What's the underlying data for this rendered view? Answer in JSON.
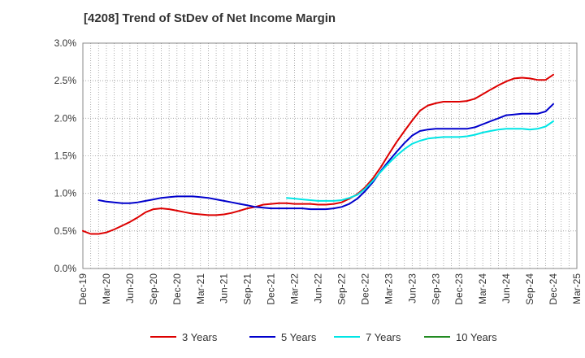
{
  "chart_data": {
    "type": "line",
    "title": "[4208]  Trend of StDev of Net Income Margin",
    "xlabel": "",
    "ylabel": "",
    "categories": [
      "Dec-19",
      "Mar-20",
      "Jun-20",
      "Sep-20",
      "Dec-20",
      "Mar-21",
      "Jun-21",
      "Sep-21",
      "Dec-21",
      "Mar-22",
      "Jun-22",
      "Sep-22",
      "Dec-22",
      "Mar-23",
      "Jun-23",
      "Sep-23",
      "Dec-23",
      "Mar-24",
      "Jun-24",
      "Sep-24",
      "Dec-24",
      "Mar-25"
    ],
    "y_ticks": [
      "0.0%",
      "0.5%",
      "1.0%",
      "1.5%",
      "2.0%",
      "2.5%",
      "3.0%"
    ],
    "ylim": [
      0,
      3.0
    ],
    "grid": true,
    "legend_position": "bottom",
    "series": [
      {
        "name": "3 Years",
        "color": "#dd0000",
        "points": [
          [
            0,
            0.5
          ],
          [
            0.33,
            0.46
          ],
          [
            0.67,
            0.46
          ],
          [
            1,
            0.48
          ],
          [
            1.33,
            0.52
          ],
          [
            1.67,
            0.57
          ],
          [
            2,
            0.62
          ],
          [
            2.33,
            0.68
          ],
          [
            2.67,
            0.75
          ],
          [
            3,
            0.79
          ],
          [
            3.33,
            0.8
          ],
          [
            3.67,
            0.79
          ],
          [
            4,
            0.77
          ],
          [
            4.33,
            0.75
          ],
          [
            4.67,
            0.73
          ],
          [
            5,
            0.72
          ],
          [
            5.33,
            0.71
          ],
          [
            5.67,
            0.71
          ],
          [
            6,
            0.72
          ],
          [
            6.33,
            0.74
          ],
          [
            6.67,
            0.77
          ],
          [
            7,
            0.8
          ],
          [
            7.33,
            0.82
          ],
          [
            7.67,
            0.85
          ],
          [
            8,
            0.86
          ],
          [
            8.33,
            0.87
          ],
          [
            8.67,
            0.87
          ],
          [
            9,
            0.86
          ],
          [
            9.33,
            0.86
          ],
          [
            9.67,
            0.86
          ],
          [
            10,
            0.85
          ],
          [
            10.33,
            0.85
          ],
          [
            10.67,
            0.86
          ],
          [
            11,
            0.88
          ],
          [
            11.33,
            0.93
          ],
          [
            11.67,
            0.99
          ],
          [
            12,
            1.08
          ],
          [
            12.33,
            1.2
          ],
          [
            12.67,
            1.35
          ],
          [
            13,
            1.52
          ],
          [
            13.33,
            1.68
          ],
          [
            13.67,
            1.83
          ],
          [
            14,
            1.97
          ],
          [
            14.33,
            2.1
          ],
          [
            14.67,
            2.17
          ],
          [
            15,
            2.2
          ],
          [
            15.33,
            2.22
          ],
          [
            15.67,
            2.22
          ],
          [
            16,
            2.22
          ],
          [
            16.33,
            2.23
          ],
          [
            16.67,
            2.26
          ],
          [
            17,
            2.32
          ],
          [
            17.33,
            2.38
          ],
          [
            17.67,
            2.44
          ],
          [
            18,
            2.49
          ],
          [
            18.33,
            2.53
          ],
          [
            18.67,
            2.54
          ],
          [
            19,
            2.53
          ],
          [
            19.33,
            2.51
          ],
          [
            19.67,
            2.51
          ],
          [
            20,
            2.58
          ]
        ]
      },
      {
        "name": "5 Years",
        "color": "#0000cc",
        "points": [
          [
            0.67,
            0.91
          ],
          [
            1,
            0.89
          ],
          [
            1.33,
            0.88
          ],
          [
            1.67,
            0.87
          ],
          [
            2,
            0.87
          ],
          [
            2.33,
            0.88
          ],
          [
            2.67,
            0.9
          ],
          [
            3,
            0.92
          ],
          [
            3.33,
            0.94
          ],
          [
            3.67,
            0.95
          ],
          [
            4,
            0.96
          ],
          [
            4.33,
            0.96
          ],
          [
            4.67,
            0.96
          ],
          [
            5,
            0.95
          ],
          [
            5.33,
            0.94
          ],
          [
            5.67,
            0.92
          ],
          [
            6,
            0.9
          ],
          [
            6.33,
            0.88
          ],
          [
            6.67,
            0.86
          ],
          [
            7,
            0.84
          ],
          [
            7.33,
            0.82
          ],
          [
            7.67,
            0.81
          ],
          [
            8,
            0.8
          ],
          [
            8.33,
            0.8
          ],
          [
            8.67,
            0.8
          ],
          [
            9,
            0.8
          ],
          [
            9.33,
            0.8
          ],
          [
            9.67,
            0.79
          ],
          [
            10,
            0.79
          ],
          [
            10.33,
            0.79
          ],
          [
            10.67,
            0.8
          ],
          [
            11,
            0.82
          ],
          [
            11.33,
            0.86
          ],
          [
            11.67,
            0.93
          ],
          [
            12,
            1.03
          ],
          [
            12.33,
            1.15
          ],
          [
            12.67,
            1.3
          ],
          [
            13,
            1.43
          ],
          [
            13.33,
            1.55
          ],
          [
            13.67,
            1.67
          ],
          [
            14,
            1.77
          ],
          [
            14.33,
            1.83
          ],
          [
            14.67,
            1.85
          ],
          [
            15,
            1.86
          ],
          [
            15.33,
            1.86
          ],
          [
            15.67,
            1.86
          ],
          [
            16,
            1.86
          ],
          [
            16.33,
            1.86
          ],
          [
            16.67,
            1.88
          ],
          [
            17,
            1.92
          ],
          [
            17.33,
            1.96
          ],
          [
            17.67,
            2.0
          ],
          [
            18,
            2.04
          ],
          [
            18.33,
            2.05
          ],
          [
            18.67,
            2.06
          ],
          [
            19,
            2.06
          ],
          [
            19.33,
            2.06
          ],
          [
            19.67,
            2.09
          ],
          [
            20,
            2.19
          ]
        ]
      },
      {
        "name": "7 Years",
        "color": "#00e5e5",
        "points": [
          [
            8.67,
            0.94
          ],
          [
            9,
            0.93
          ],
          [
            9.33,
            0.92
          ],
          [
            9.67,
            0.91
          ],
          [
            10,
            0.9
          ],
          [
            10.33,
            0.9
          ],
          [
            10.67,
            0.9
          ],
          [
            11,
            0.91
          ],
          [
            11.33,
            0.94
          ],
          [
            11.67,
            0.98
          ],
          [
            12,
            1.06
          ],
          [
            12.33,
            1.17
          ],
          [
            12.67,
            1.29
          ],
          [
            13,
            1.4
          ],
          [
            13.33,
            1.5
          ],
          [
            13.67,
            1.59
          ],
          [
            14,
            1.66
          ],
          [
            14.33,
            1.7
          ],
          [
            14.67,
            1.73
          ],
          [
            15,
            1.74
          ],
          [
            15.33,
            1.75
          ],
          [
            15.67,
            1.75
          ],
          [
            16,
            1.75
          ],
          [
            16.33,
            1.76
          ],
          [
            16.67,
            1.78
          ],
          [
            17,
            1.81
          ],
          [
            17.33,
            1.83
          ],
          [
            17.67,
            1.85
          ],
          [
            18,
            1.86
          ],
          [
            18.33,
            1.86
          ],
          [
            18.67,
            1.86
          ],
          [
            19,
            1.85
          ],
          [
            19.33,
            1.86
          ],
          [
            19.67,
            1.89
          ],
          [
            20,
            1.96
          ]
        ]
      },
      {
        "name": "10 Years",
        "color": "#228b22",
        "points": []
      }
    ]
  }
}
